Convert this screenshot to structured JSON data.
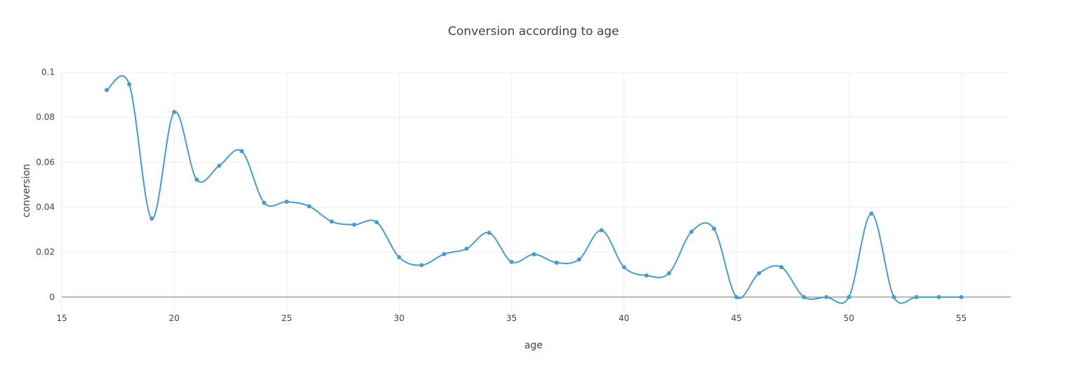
{
  "chart_data": {
    "type": "line",
    "title": "Conversion according to age",
    "xlabel": "age",
    "ylabel": "conversion",
    "xlim": [
      15,
      57.2
    ],
    "ylim": [
      -0.0066,
      0.1
    ],
    "xticks": [
      15,
      20,
      25,
      30,
      35,
      40,
      45,
      50,
      55
    ],
    "xtick_labels": [
      "15",
      "20",
      "25",
      "30",
      "35",
      "40",
      "45",
      "50",
      "55"
    ],
    "yticks": [
      0,
      0.02,
      0.04,
      0.06,
      0.08,
      0.1
    ],
    "ytick_labels": [
      "0",
      "0.02",
      "0.04",
      "0.06",
      "0.08",
      "0.1"
    ],
    "grid": true,
    "line_shape": "spline",
    "color": "#4a9bc7",
    "series": [
      {
        "x": [
          17,
          18,
          19,
          20,
          21,
          22,
          23,
          24,
          25,
          26,
          27,
          28,
          29,
          30,
          31,
          32,
          33,
          34,
          35,
          36,
          37,
          38,
          39,
          40,
          41,
          42,
          43,
          44,
          45,
          46,
          47,
          48,
          49,
          50,
          51,
          52,
          53,
          54,
          55
        ],
        "y": [
          0.0921,
          0.0946,
          0.0349,
          0.0823,
          0.0522,
          0.0584,
          0.0649,
          0.0419,
          0.0424,
          0.0404,
          0.0336,
          0.0322,
          0.0333,
          0.0177,
          0.0142,
          0.0191,
          0.0215,
          0.0286,
          0.0156,
          0.019,
          0.0153,
          0.0167,
          0.0297,
          0.0133,
          0.0096,
          0.0106,
          0.0291,
          0.0304,
          0.0,
          0.0106,
          0.0133,
          0.0,
          0.0,
          0.0,
          0.0371,
          0.0,
          0.0,
          0.0,
          0.0
        ]
      }
    ]
  }
}
